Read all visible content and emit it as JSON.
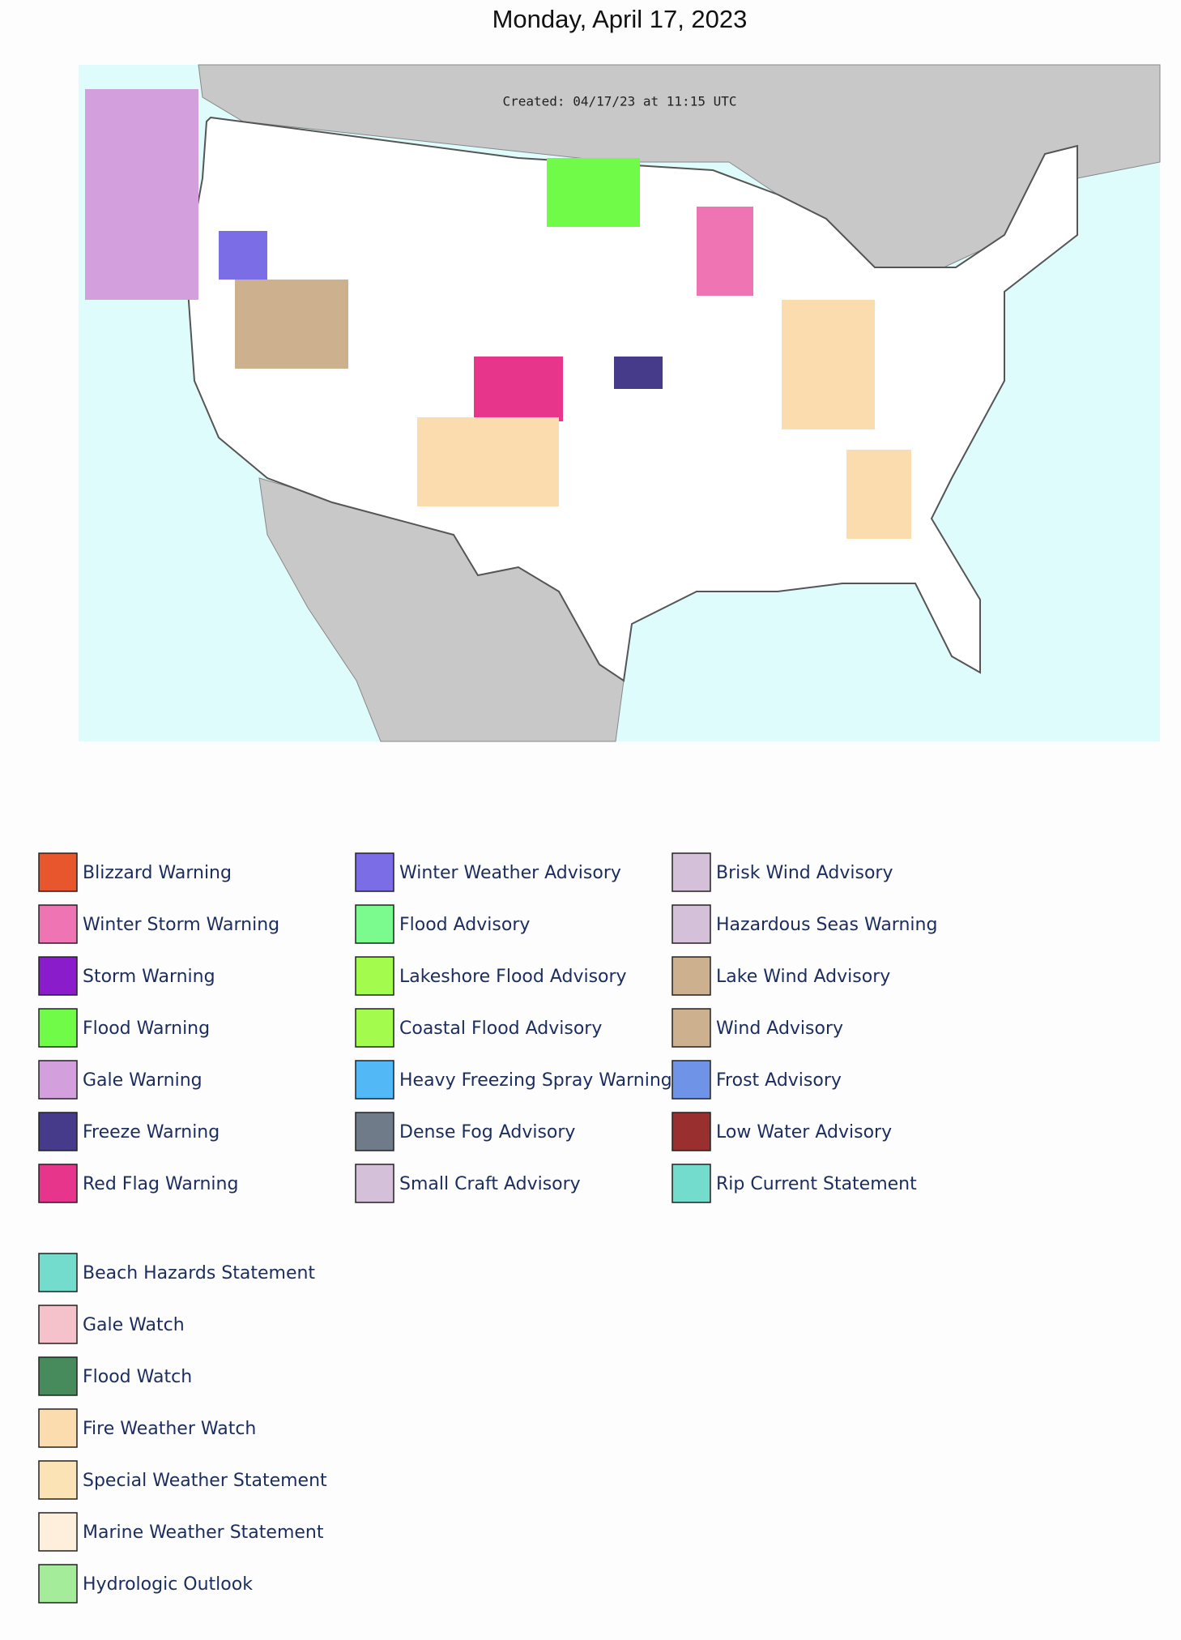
{
  "title": "Monday, April 17, 2023",
  "map": {
    "created": "Created: 04/17/23 at 11:15 UTC"
  },
  "legend": {
    "groups": [
      {
        "items": [
          {
            "label": "Blizzard Warning",
            "color": "#e8562e"
          },
          {
            "label": "Winter Storm Warning",
            "color": "#ee74b4"
          },
          {
            "label": "Storm Warning",
            "color": "#8a1ccc"
          },
          {
            "label": "Flood Warning",
            "color": "#70fb48"
          },
          {
            "label": "Gale Warning",
            "color": "#d39fdc"
          },
          {
            "label": "Freeze Warning",
            "color": "#463a8a"
          },
          {
            "label": "Red Flag Warning",
            "color": "#e8358c"
          },
          {
            "label": "Winter Weather Advisory",
            "color": "#7b6de6"
          },
          {
            "label": "Flood Advisory",
            "color": "#7bfb8e"
          },
          {
            "label": "Lakeshore Flood Advisory",
            "color": "#a3fb4d"
          },
          {
            "label": "Coastal Flood Advisory",
            "color": "#a3fb4d"
          },
          {
            "label": "Heavy Freezing Spray Warning",
            "color": "#53b8f6"
          },
          {
            "label": "Dense Fog Advisory",
            "color": "#707b8a"
          },
          {
            "label": "Small Craft Advisory",
            "color": "#d4c1d9"
          },
          {
            "label": "Brisk Wind Advisory",
            "color": "#d4c1d9"
          },
          {
            "label": "Hazardous Seas Warning",
            "color": "#d4c1d9"
          },
          {
            "label": "Lake Wind Advisory",
            "color": "#cdb08e"
          },
          {
            "label": "Wind Advisory",
            "color": "#cdb08e"
          },
          {
            "label": "Frost Advisory",
            "color": "#6f93e6"
          },
          {
            "label": "Low Water Advisory",
            "color": "#9a2f2f"
          },
          {
            "label": "Rip Current Statement",
            "color": "#74dccc"
          }
        ]
      },
      {
        "items": [
          {
            "label": "Beach Hazards Statement",
            "color": "#74dccc"
          },
          {
            "label": "Gale Watch",
            "color": "#f5c2cb"
          },
          {
            "label": "Flood Watch",
            "color": "#478a5c"
          },
          {
            "label": "Fire Weather Watch",
            "color": "#fbdcae"
          },
          {
            "label": "Special Weather Statement",
            "color": "#fbe3b5"
          },
          {
            "label": "Marine Weather Statement",
            "color": "#fdefdb"
          },
          {
            "label": "Hydrologic Outlook",
            "color": "#a5ec9a"
          }
        ]
      }
    ]
  }
}
